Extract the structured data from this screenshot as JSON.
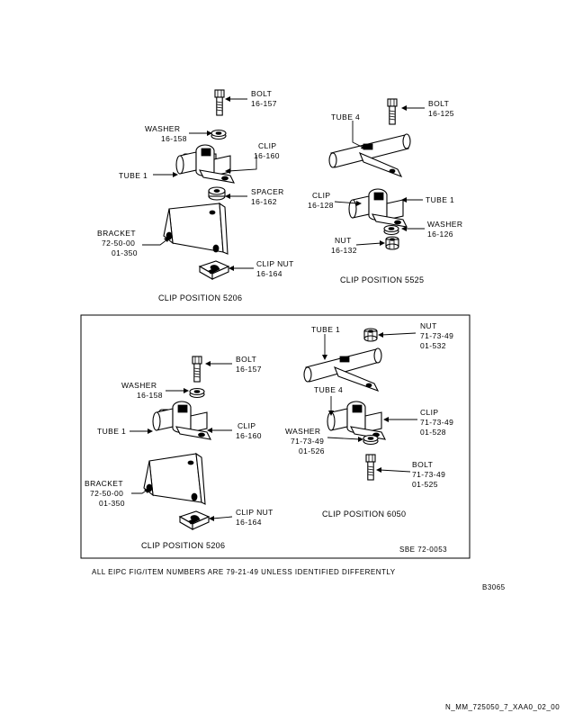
{
  "top_left": {
    "bolt": "BOLT",
    "bolt_ref": "16-157",
    "washer": "WASHER",
    "washer_ref": "16-158",
    "clip": "CLIP",
    "clip_ref": "16-160",
    "tube": "TUBE 1",
    "spacer": "SPACER",
    "spacer_ref": "16-162",
    "bracket": "BRACKET",
    "bracket_ref1": "72-50-00",
    "bracket_ref2": "01-350",
    "clipnut": "CLIP NUT",
    "clipnut_ref": "16-164",
    "caption": "CLIP POSITION 5206"
  },
  "top_right": {
    "bolt": "BOLT",
    "bolt_ref": "16-125",
    "tube4": "TUBE 4",
    "clip": "CLIP",
    "clip_ref": "16-128",
    "tube1": "TUBE 1",
    "washer": "WASHER",
    "washer_ref": "16-126",
    "nut": "NUT",
    "nut_ref": "16-132",
    "caption": "CLIP POSITION 5525"
  },
  "box_left": {
    "bolt": "BOLT",
    "bolt_ref": "16-157",
    "washer": "WASHER",
    "washer_ref": "16-158",
    "tube": "TUBE 1",
    "clip": "CLIP",
    "clip_ref": "16-160",
    "bracket": "BRACKET",
    "bracket_ref1": "72-50-00",
    "bracket_ref2": "01-350",
    "clipnut": "CLIP NUT",
    "clipnut_ref": "16-164",
    "caption": "CLIP POSITION 5206"
  },
  "box_right": {
    "tube1": "TUBE 1",
    "nut": "NUT",
    "nut_ref1": "71-73-49",
    "nut_ref2": "01-532",
    "tube4": "TUBE 4",
    "clip": "CLIP",
    "clip_ref1": "71-73-49",
    "clip_ref2": "01-528",
    "washer": "WASHER",
    "washer_ref1": "71-73-49",
    "washer_ref2": "01-526",
    "bolt": "BOLT",
    "bolt_ref1": "71-73-49",
    "bolt_ref2": "01-525",
    "caption": "CLIP POSITION 6050"
  },
  "sbe": "SBE 72-0053",
  "note": "ALL EIPC FIG/ITEM NUMBERS ARE 79-21-49 UNLESS IDENTIFIED DIFFERENTLY",
  "figure_id": "B3065",
  "doc_id": "N_MM_725050_7_XAA0_02_00"
}
